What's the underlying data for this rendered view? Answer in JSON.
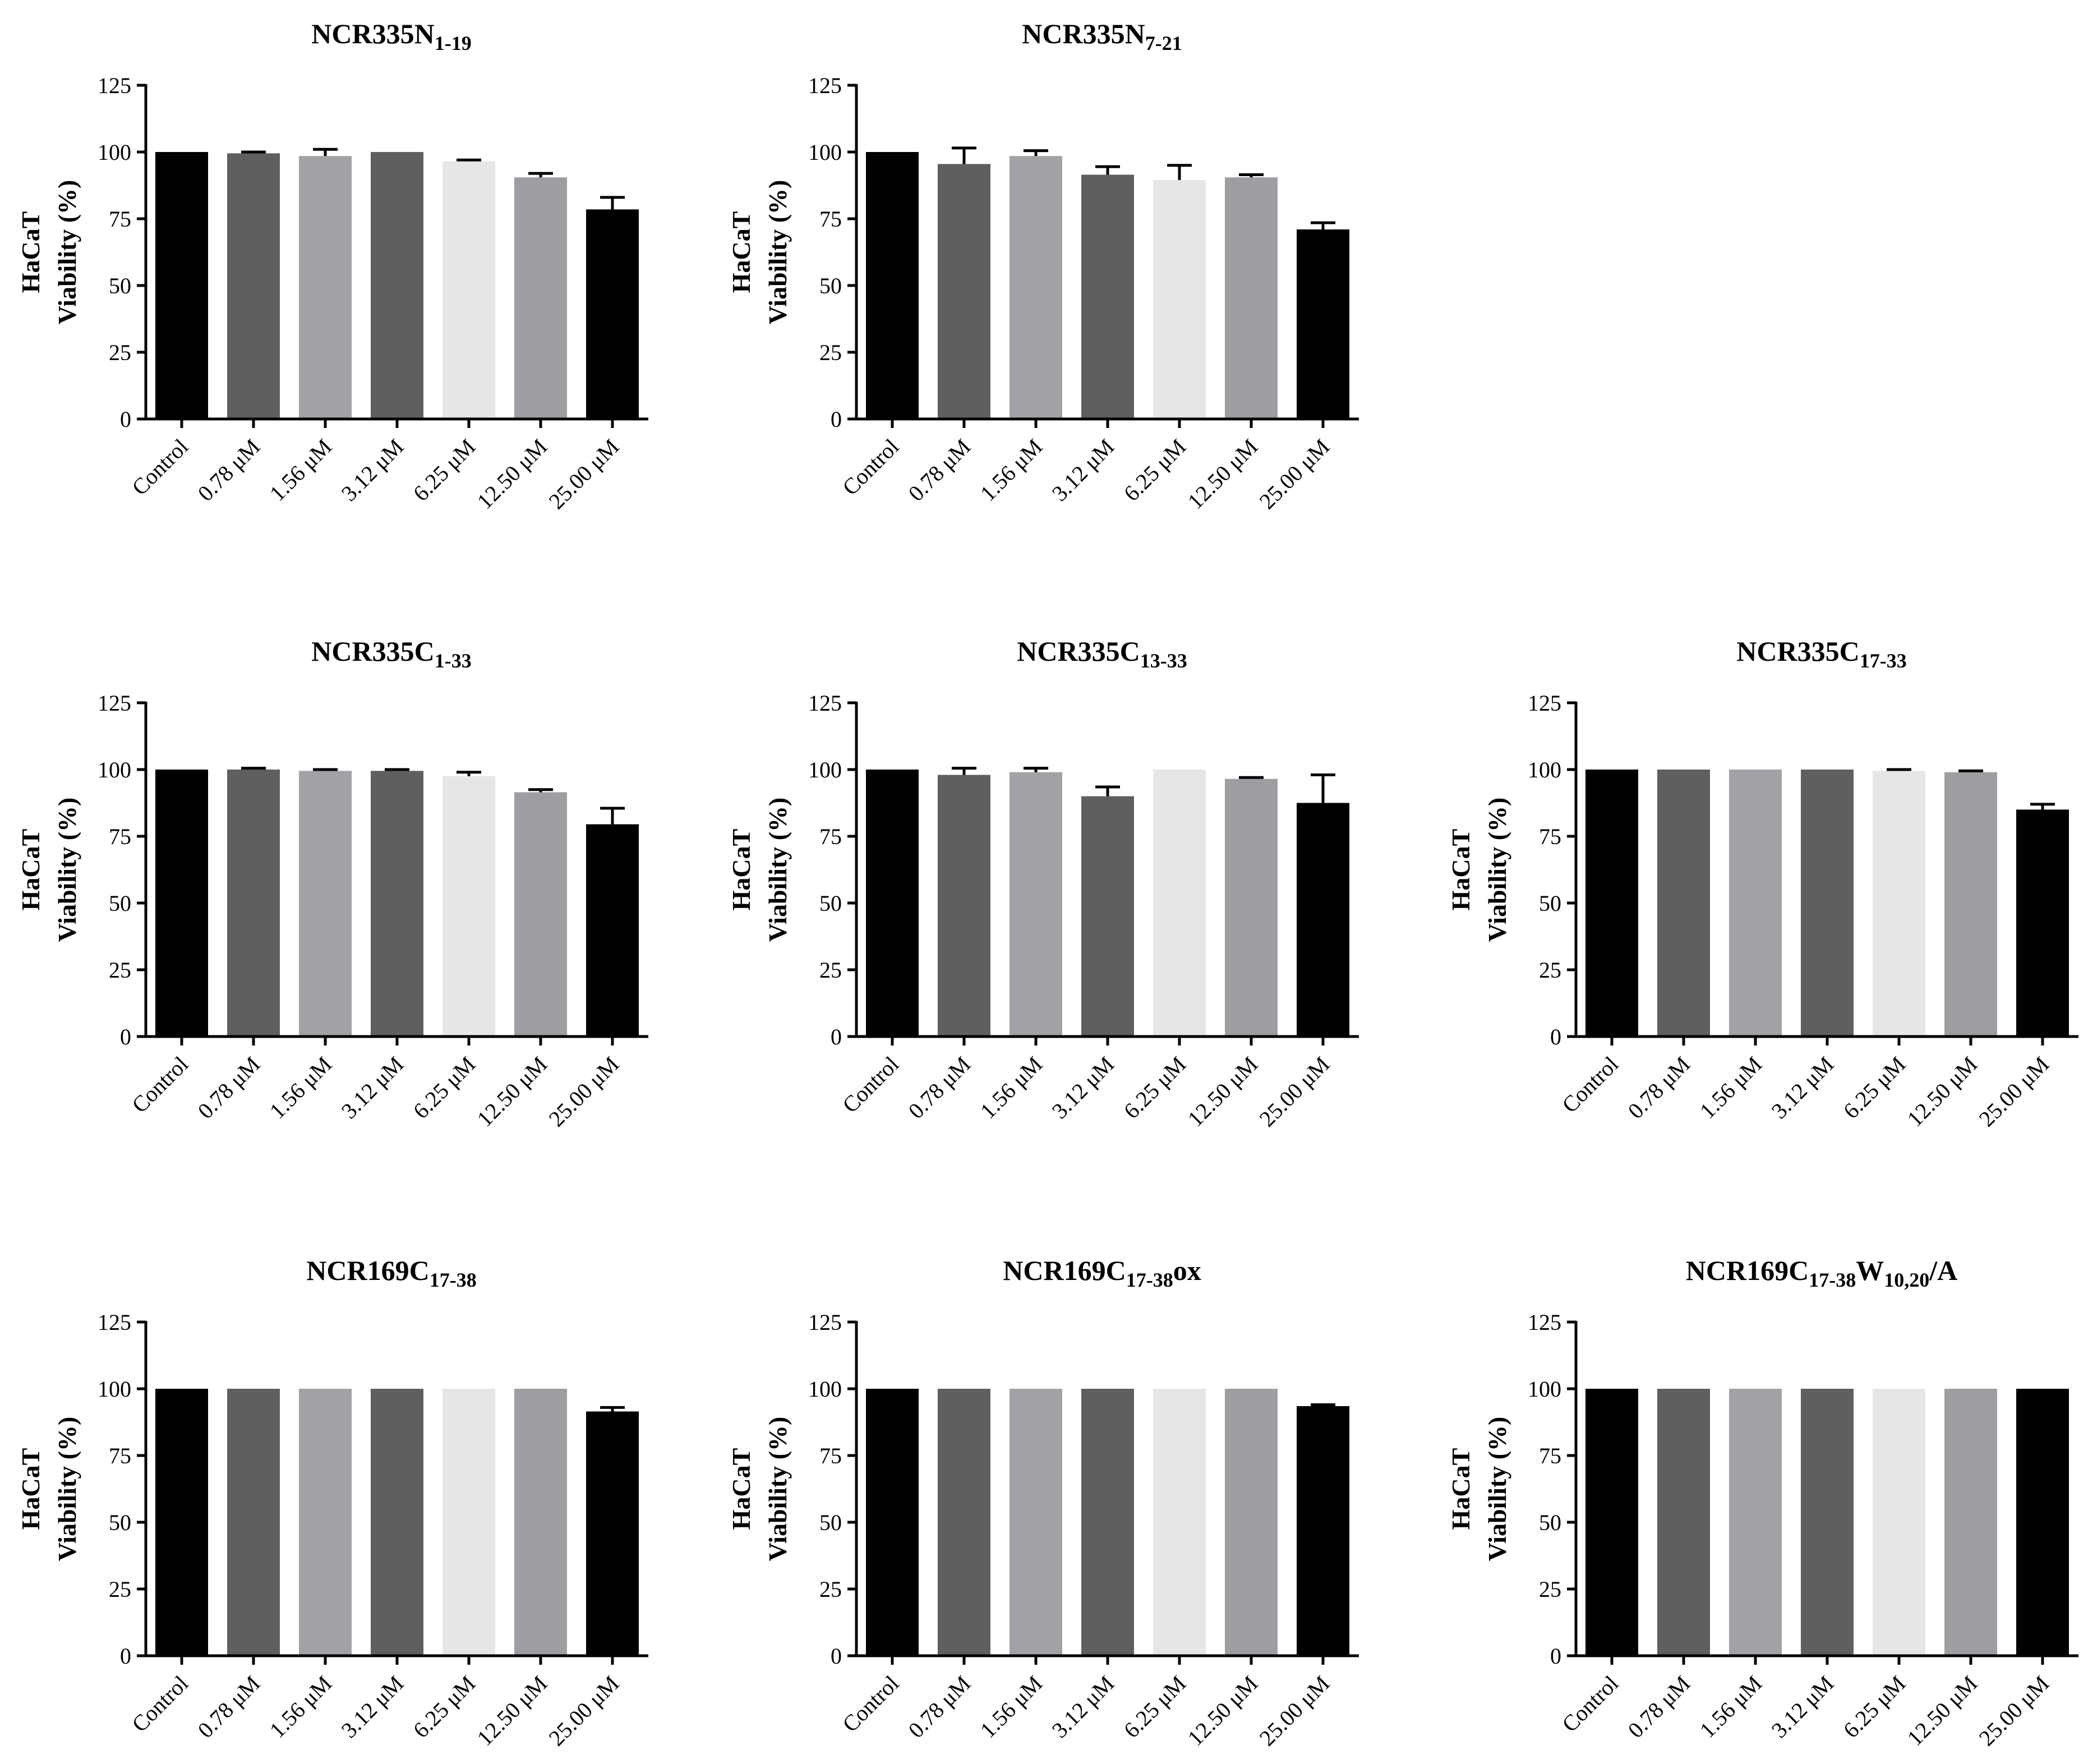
{
  "figure": {
    "y_label_line1": "HaCaT",
    "y_label_line2": "Viability (%)",
    "categories": [
      "Control",
      "0.78 μM",
      "1.56 μM",
      "3.12 μM",
      "6.25 μM",
      "12.50 μM",
      "25.00 μM"
    ],
    "bar_colors": [
      "#000000",
      "#5f5f5f",
      "#a2a2a6",
      "#5f5f5f",
      "#e6e6e6",
      "#9e9ea2",
      "#000000"
    ]
  },
  "chart_data": [
    {
      "type": "bar",
      "title_main": "NCR335N",
      "title_sub": "1-19",
      "title_tail": "",
      "xlabel": "",
      "ylabel": "HaCaT Viability (%)",
      "ylim": [
        0,
        125
      ],
      "yticks": [
        0,
        25,
        50,
        75,
        100,
        125
      ],
      "categories": [
        "Control",
        "0.78 μM",
        "1.56 μM",
        "3.12 μM",
        "6.25 μM",
        "12.50 μM",
        "25.00 μM"
      ],
      "values": [
        100,
        99.5,
        98.5,
        100,
        96.5,
        90.5,
        78.5
      ],
      "errors": [
        0,
        0.5,
        2.5,
        0,
        0.5,
        1.5,
        4.5
      ]
    },
    {
      "type": "bar",
      "title_main": "NCR335N",
      "title_sub": "7-21",
      "title_tail": "",
      "xlabel": "",
      "ylabel": "HaCaT Viability (%)",
      "ylim": [
        0,
        125
      ],
      "yticks": [
        0,
        25,
        50,
        75,
        100,
        125
      ],
      "categories": [
        "Control",
        "0.78 μM",
        "1.56 μM",
        "3.12 μM",
        "6.25 μM",
        "12.50 μM",
        "25.00 μM"
      ],
      "values": [
        100,
        95.5,
        98.5,
        91.5,
        89.5,
        90.5,
        71
      ],
      "errors": [
        0,
        6,
        2,
        3,
        5.5,
        1,
        2.5
      ]
    },
    null,
    {
      "type": "bar",
      "title_main": "NCR335C",
      "title_sub": "1-33",
      "title_tail": "",
      "xlabel": "",
      "ylabel": "HaCaT Viability (%)",
      "ylim": [
        0,
        125
      ],
      "yticks": [
        0,
        25,
        50,
        75,
        100,
        125
      ],
      "categories": [
        "Control",
        "0.78 μM",
        "1.56 μM",
        "3.12 μM",
        "6.25 μM",
        "12.50 μM",
        "25.00 μM"
      ],
      "values": [
        100,
        100,
        99.5,
        99.5,
        97.5,
        91.5,
        79.5
      ],
      "errors": [
        0,
        0.5,
        0.5,
        0.5,
        1.5,
        1,
        6
      ]
    },
    {
      "type": "bar",
      "title_main": "NCR335C",
      "title_sub": "13-33",
      "title_tail": "",
      "xlabel": "",
      "ylabel": "HaCaT Viability (%)",
      "ylim": [
        0,
        125
      ],
      "yticks": [
        0,
        25,
        50,
        75,
        100,
        125
      ],
      "categories": [
        "Control",
        "0.78 μM",
        "1.56 μM",
        "3.12 μM",
        "6.25 μM",
        "12.50 μM",
        "25.00 μM"
      ],
      "values": [
        100,
        98,
        99,
        90,
        100,
        96.5,
        87.5
      ],
      "errors": [
        0,
        2.5,
        1.5,
        3.5,
        0,
        0.5,
        10.5
      ]
    },
    {
      "type": "bar",
      "title_main": "NCR335C",
      "title_sub": "17-33",
      "title_tail": "",
      "xlabel": "",
      "ylabel": "HaCaT Viability (%)",
      "ylim": [
        0,
        125
      ],
      "yticks": [
        0,
        25,
        50,
        75,
        100,
        125
      ],
      "categories": [
        "Control",
        "0.78 μM",
        "1.56 μM",
        "3.12 μM",
        "6.25 μM",
        "12.50 μM",
        "25.00 μM"
      ],
      "values": [
        100,
        100,
        100,
        100,
        99.5,
        99,
        85
      ],
      "errors": [
        0,
        0,
        0,
        0,
        0.5,
        0.5,
        2
      ]
    },
    {
      "type": "bar",
      "title_main": "NCR169C",
      "title_sub": "17-38",
      "title_tail": "",
      "xlabel": "",
      "ylabel": "HaCaT Viability (%)",
      "ylim": [
        0,
        125
      ],
      "yticks": [
        0,
        25,
        50,
        75,
        100,
        125
      ],
      "categories": [
        "Control",
        "0.78 μM",
        "1.56 μM",
        "3.12 μM",
        "6.25 μM",
        "12.50 μM",
        "25.00 μM"
      ],
      "values": [
        100,
        100,
        100,
        100,
        100,
        100,
        91.5
      ],
      "errors": [
        0,
        0,
        0,
        0,
        0,
        0,
        1.5
      ]
    },
    {
      "type": "bar",
      "title_main": "NCR169C",
      "title_sub": "17-38",
      "title_tail": "ox",
      "xlabel": "",
      "ylabel": "HaCaT Viability (%)",
      "ylim": [
        0,
        125
      ],
      "yticks": [
        0,
        25,
        50,
        75,
        100,
        125
      ],
      "categories": [
        "Control",
        "0.78 μM",
        "1.56 μM",
        "3.12 μM",
        "6.25 μM",
        "12.50 μM",
        "25.00 μM"
      ],
      "values": [
        100,
        100,
        100,
        100,
        100,
        100,
        93.5
      ],
      "errors": [
        0,
        0,
        0,
        0,
        0,
        0,
        0.5
      ]
    },
    {
      "type": "bar",
      "title_main": "NCR169C",
      "title_sub": "17-38",
      "title_tail": "W",
      "title_sub2": "10,20",
      "title_tail2": "/A",
      "xlabel": "",
      "ylabel": "HaCaT Viability (%)",
      "ylim": [
        0,
        125
      ],
      "yticks": [
        0,
        25,
        50,
        75,
        100,
        125
      ],
      "categories": [
        "Control",
        "0.78 μM",
        "1.56 μM",
        "3.12 μM",
        "6.25 μM",
        "12.50 μM",
        "25.00 μM"
      ],
      "values": [
        100,
        100,
        100,
        100,
        100,
        100,
        100
      ],
      "errors": [
        0,
        0,
        0,
        0,
        0,
        0,
        0
      ]
    }
  ]
}
